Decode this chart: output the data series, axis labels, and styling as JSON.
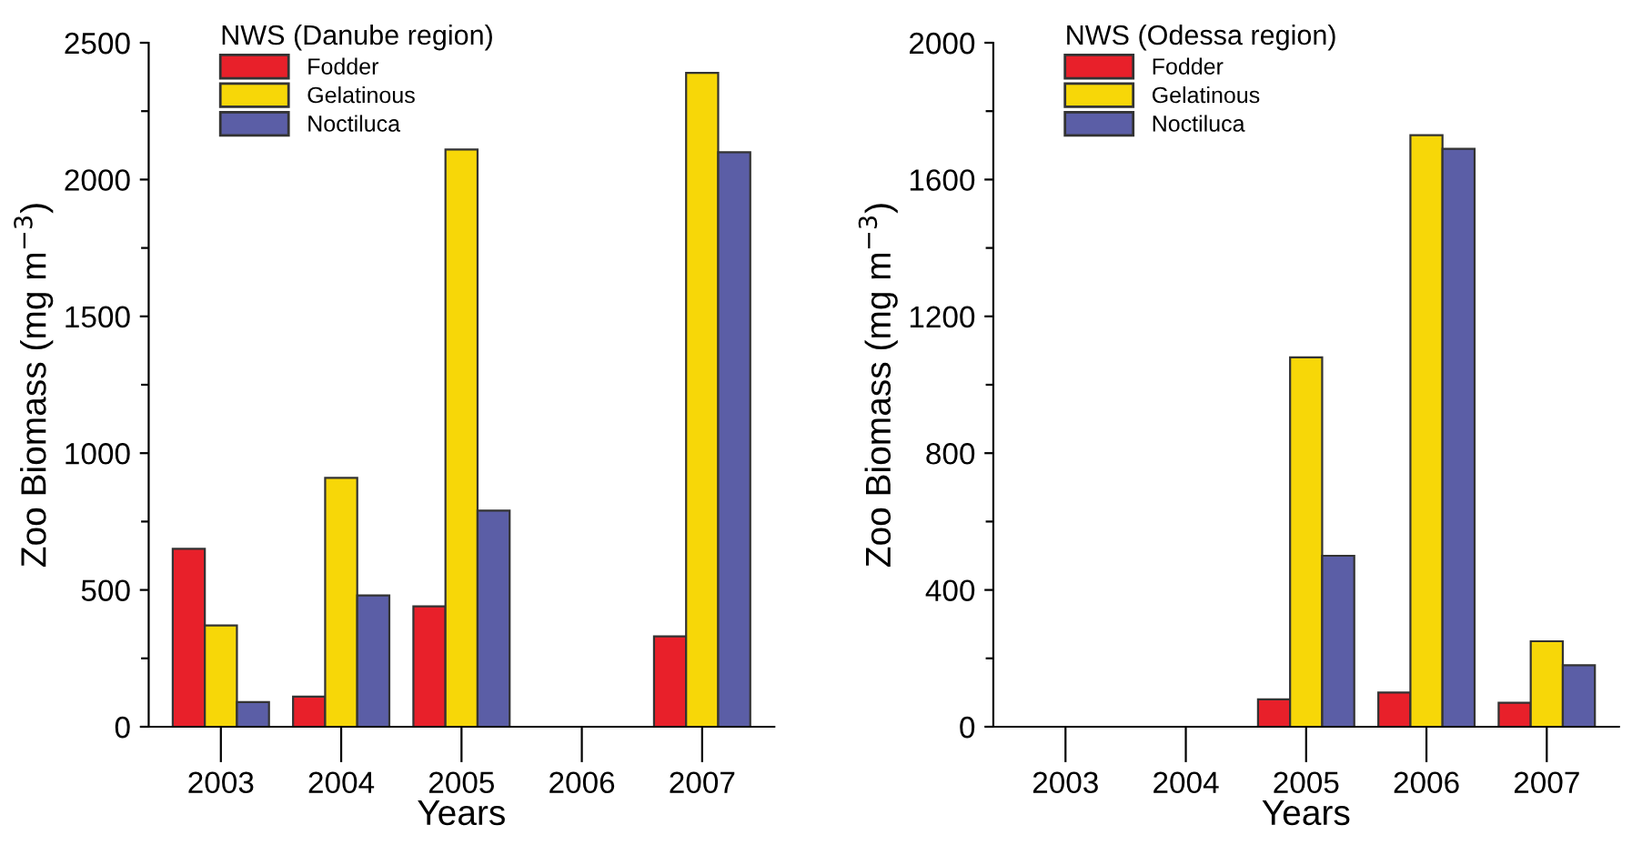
{
  "chart_data": [
    {
      "type": "bar",
      "xlabel": "Years",
      "ylabel": "Zoo Biomass (mg m$^{−3}$)",
      "legend_title": "NWS (Danube region)",
      "legend": "top left",
      "categories": [
        "2003",
        "2004",
        "2005",
        "2006",
        "2007"
      ],
      "series": [
        {
          "name": "Fodder",
          "color": "#e8202a",
          "values": [
            650,
            110,
            440,
            null,
            330
          ]
        },
        {
          "name": "Gelatinous",
          "color": "#f7d708",
          "values": [
            370,
            910,
            2110,
            null,
            2390
          ]
        },
        {
          "name": "Noctiluca",
          "color": "#5b5ea6",
          "values": [
            90,
            480,
            790,
            null,
            2100
          ]
        }
      ],
      "ylim": [
        0,
        2500
      ],
      "yticks": [
        0,
        {
          "value": 250,
          "label": null
        },
        500,
        {
          "value": 750,
          "label": null
        },
        1000,
        {
          "value": 1250,
          "label": null
        },
        1500,
        {
          "value": 1750,
          "label": null
        },
        2000,
        {
          "value": 2250,
          "label": null
        },
        2500
      ],
      "grid": false
    },
    {
      "type": "bar",
      "xlabel": "Years",
      "ylabel": "Zoo Biomass (mg m$^{−3}$)",
      "legend_title": "NWS (Odessa region)",
      "legend": "top left",
      "categories": [
        "2003",
        "2004",
        "2005",
        "2006",
        "2007"
      ],
      "series": [
        {
          "name": "Fodder",
          "color": "#e8202a",
          "values": [
            null,
            null,
            80,
            100,
            70
          ]
        },
        {
          "name": "Gelatinous",
          "color": "#f7d708",
          "values": [
            null,
            null,
            1080,
            1730,
            250
          ]
        },
        {
          "name": "Noctiluca",
          "color": "#5b5ea6",
          "values": [
            null,
            null,
            500,
            1690,
            180
          ]
        }
      ],
      "ylim": [
        0,
        2000
      ],
      "yticks": [
        0,
        {
          "value": 200,
          "label": null
        },
        400,
        {
          "value": 600,
          "label": null
        },
        800,
        {
          "value": 1000,
          "label": null
        },
        1200,
        {
          "value": 1400,
          "label": null
        },
        1600,
        {
          "value": 1800,
          "label": null
        },
        2000
      ],
      "grid": false
    }
  ]
}
